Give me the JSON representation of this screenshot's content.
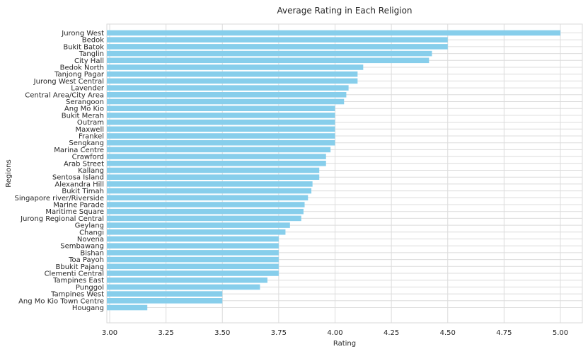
{
  "chart_data": {
    "type": "bar",
    "orientation": "horizontal",
    "title": "Average Rating in Each Religion",
    "xlabel": "Rating",
    "ylabel": "Regions",
    "xlim": [
      3.0,
      5.1
    ],
    "xticks": [
      "3.00",
      "3.25",
      "3.50",
      "3.75",
      "4.00",
      "4.25",
      "4.50",
      "4.75",
      "5.00"
    ],
    "grid": true,
    "bar_color": "#87CEEB",
    "categories": [
      "Jurong West",
      "Bedok",
      "Bukit Batok",
      "Tanglin",
      "City Hall",
      "Bedok North",
      "Tanjong Pagar",
      "Jurong West Central",
      "Lavender",
      "Central Area/City Area",
      "Serangoon",
      "Ang Mo Kio",
      "Bukit Merah",
      "Outram",
      "Maxwell",
      "Frankel",
      "Sengkang",
      "Marina Centre",
      "Crawford",
      "Arab Street",
      "Kallang",
      "Sentosa Island",
      "Alexandra Hill",
      "Bukit Timah",
      "Singapore river/Riverside",
      "Marine Parade",
      "Maritime Square",
      "Jurong Regional Central",
      "Geylang",
      "Changi",
      "Novena",
      "Sembawang",
      "Bishan",
      "Toa Payoh",
      "Bbukit Pajang",
      "Clementi Central",
      "Tampines East",
      "Punggol",
      "Tampines West",
      "Ang Mo Kio Town Centre",
      "Hougang"
    ],
    "values": [
      5.0,
      4.5,
      4.5,
      4.43,
      4.417,
      4.125,
      4.1,
      4.1,
      4.06,
      4.05,
      4.04,
      4.0,
      4.0,
      4.0,
      4.0,
      4.0,
      4.0,
      3.98,
      3.96,
      3.96,
      3.93,
      3.93,
      3.9,
      3.895,
      3.88,
      3.865,
      3.86,
      3.85,
      3.8,
      3.78,
      3.75,
      3.75,
      3.75,
      3.75,
      3.75,
      3.75,
      3.7,
      3.667,
      3.5,
      3.5,
      3.167
    ]
  }
}
